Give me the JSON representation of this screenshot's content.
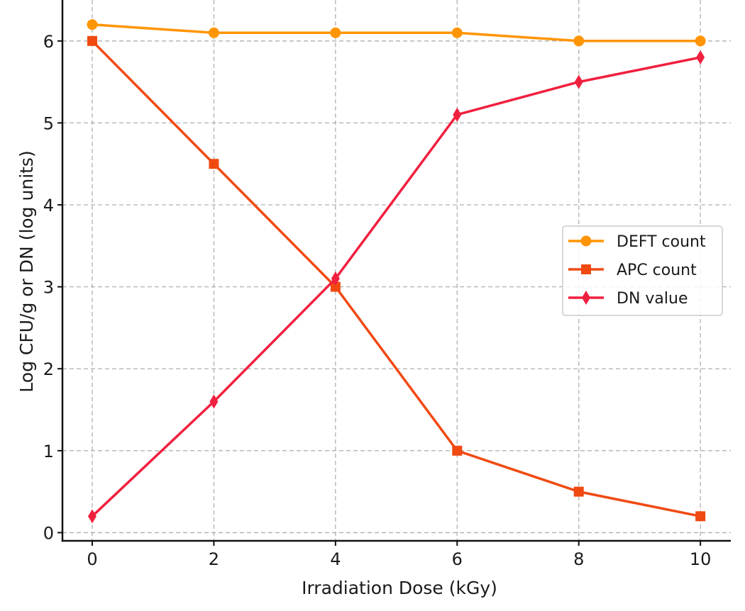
{
  "chart_data": {
    "type": "line",
    "title": "",
    "xlabel": "Irradiation Dose (kGy)",
    "ylabel": "Log CFU/g or DN (log units)",
    "x": [
      0,
      2,
      4,
      6,
      8,
      10
    ],
    "xlim": [
      -0.49,
      10.5
    ],
    "ylim": [
      -0.1,
      6.5
    ],
    "xticks": [
      0,
      2,
      4,
      6,
      8,
      10
    ],
    "yticks": [
      0,
      1,
      2,
      3,
      4,
      5,
      6
    ],
    "grid": true,
    "grid_style": "dashed",
    "legend_position": "center-right",
    "series": [
      {
        "name": "DEFT count",
        "marker": "circle",
        "color": "#ff9505",
        "values": [
          6.2,
          6.1,
          6.1,
          6.1,
          6.0,
          6.0
        ]
      },
      {
        "name": "APC count",
        "marker": "square",
        "color": "#f04a12",
        "values": [
          6.0,
          4.5,
          3.0,
          1.0,
          0.5,
          0.2
        ]
      },
      {
        "name": "DN value",
        "marker": "diamond",
        "color": "#f0203f",
        "values": [
          0.2,
          1.6,
          3.1,
          5.1,
          5.5,
          5.8
        ]
      }
    ]
  }
}
